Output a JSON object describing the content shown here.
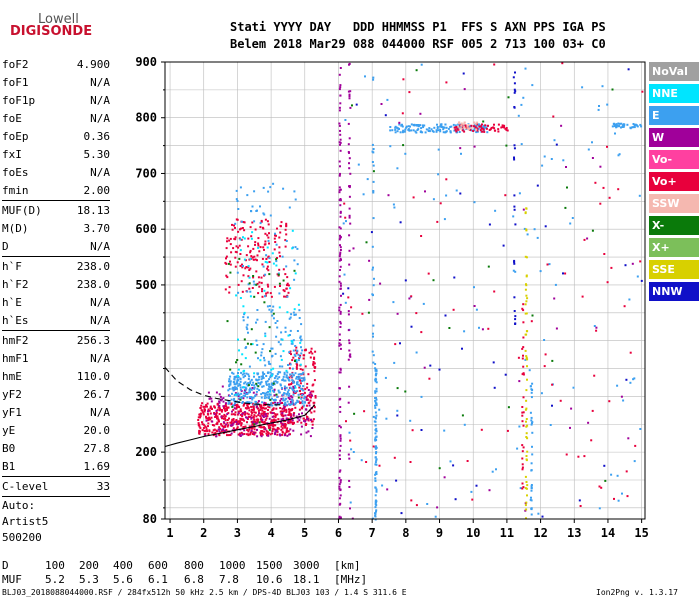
{
  "logo": {
    "line1": "Lowell",
    "line2": "DIGISONDE"
  },
  "header": {
    "row1": "Stati YYYY DAY   DDD HHMMSS P1  FFS S AXN PPS IGA PS",
    "row2": "Belem 2018 Mar29 088 044000 RSF 005 2 713 100 03+ C0"
  },
  "params": {
    "group1": [
      {
        "k": "foF2",
        "v": "4.900"
      },
      {
        "k": "foF1",
        "v": "N/A"
      },
      {
        "k": "foF1p",
        "v": "N/A"
      },
      {
        "k": "foE",
        "v": "N/A"
      },
      {
        "k": "foEp",
        "v": "0.36"
      },
      {
        "k": "fxI",
        "v": "5.30"
      },
      {
        "k": "foEs",
        "v": "N/A"
      },
      {
        "k": "fmin",
        "v": "2.00"
      }
    ],
    "group2": [
      {
        "k": "MUF(D)",
        "v": "18.13"
      },
      {
        "k": "M(D)",
        "v": "3.70"
      },
      {
        "k": "D",
        "v": "N/A"
      }
    ],
    "group3": [
      {
        "k": "h`F",
        "v": "238.0"
      },
      {
        "k": "h`F2",
        "v": "238.0"
      },
      {
        "k": "h`E",
        "v": "N/A"
      },
      {
        "k": "h`Es",
        "v": "N/A"
      }
    ],
    "group4": [
      {
        "k": "hmF2",
        "v": "256.3"
      },
      {
        "k": "hmF1",
        "v": "N/A"
      },
      {
        "k": "hmE",
        "v": "110.0"
      },
      {
        "k": "yF2",
        "v": "26.7"
      },
      {
        "k": "yF1",
        "v": "N/A"
      },
      {
        "k": "yE",
        "v": "20.0"
      },
      {
        "k": "B0",
        "v": "27.8"
      },
      {
        "k": "B1",
        "v": "1.69"
      }
    ],
    "group5": [
      {
        "k": "C-level",
        "v": "33"
      }
    ],
    "auto": [
      "Auto:",
      "Artist5",
      "500200"
    ]
  },
  "legend": [
    {
      "label": "NoVal",
      "color": "#a0a0a0"
    },
    {
      "label": "NNE",
      "color": "#00e5ff"
    },
    {
      "label": "E",
      "color": "#3ca0f0"
    },
    {
      "label": "W",
      "color": "#a0009a"
    },
    {
      "label": "Vo-",
      "color": "#ff40a0"
    },
    {
      "label": "Vo+",
      "color": "#e8003c"
    },
    {
      "label": "SSW",
      "color": "#f5b8b0"
    },
    {
      "label": "X-",
      "color": "#0a7a0a"
    },
    {
      "label": "X+",
      "color": "#7cbf5a"
    },
    {
      "label": "SSE",
      "color": "#d8d000"
    },
    {
      "label": "NNW",
      "color": "#1010c8"
    }
  ],
  "chart_data": {
    "type": "scatter",
    "title": "",
    "xlabel": "",
    "ylabel": "",
    "xlim": [
      0.85,
      15.1
    ],
    "ylim": [
      80,
      900
    ],
    "xticks": [
      1,
      2,
      3,
      4,
      5,
      6,
      7,
      8,
      9,
      10,
      11,
      12,
      13,
      14,
      15
    ],
    "yticks": [
      80,
      200,
      300,
      400,
      500,
      600,
      700,
      800,
      900
    ],
    "yticks_minor": [
      100,
      150,
      250,
      350,
      450,
      550,
      650,
      750,
      850
    ],
    "grid": true,
    "clusters": [
      {
        "color": "#e8003c",
        "x": [
          1.8,
          4.6
        ],
        "y": [
          232,
          290
        ],
        "n": 520
      },
      {
        "color": "#e8003c",
        "x": [
          4.5,
          5.3
        ],
        "y": [
          250,
          390
        ],
        "n": 160
      },
      {
        "color": "#a0009a",
        "x": [
          2.0,
          5.2
        ],
        "y": [
          230,
          320
        ],
        "n": 180
      },
      {
        "color": "#3ca0f0",
        "x": [
          2.7,
          5.0
        ],
        "y": [
          285,
          345
        ],
        "n": 340
      },
      {
        "color": "#3ca0f0",
        "x": [
          3.1,
          4.9
        ],
        "y": [
          345,
          460
        ],
        "n": 90
      },
      {
        "color": "#e8003c",
        "x": [
          2.6,
          4.5
        ],
        "y": [
          480,
          620
        ],
        "n": 180
      },
      {
        "color": "#3ca0f0",
        "x": [
          2.9,
          4.8
        ],
        "y": [
          460,
          690
        ],
        "n": 60
      },
      {
        "color": "#00e5ff",
        "x": [
          2.8,
          4.9
        ],
        "y": [
          300,
          600
        ],
        "n": 60
      },
      {
        "color": "#0a7a0a",
        "x": [
          2.6,
          4.8
        ],
        "y": [
          240,
          560
        ],
        "n": 40
      },
      {
        "color": "#3ca0f0",
        "x": [
          7.5,
          10.4
        ],
        "y": [
          775,
          790
        ],
        "n": 160
      },
      {
        "color": "#e8003c",
        "x": [
          9.4,
          11.0
        ],
        "y": [
          776,
          790
        ],
        "n": 60
      },
      {
        "color": "#f5b8b0",
        "x": [
          9.5,
          10.1
        ],
        "y": [
          780,
          794
        ],
        "n": 25
      },
      {
        "color": "#3ca0f0",
        "x": [
          14.1,
          15.0
        ],
        "y": [
          783,
          792
        ],
        "n": 40
      },
      {
        "color": "#3ca0f0",
        "x": [
          6.1,
          15.0
        ],
        "y": [
          80,
          900
        ],
        "n": 120
      },
      {
        "color": "#e8003c",
        "x": [
          6.1,
          15.0
        ],
        "y": [
          80,
          900
        ],
        "n": 80
      },
      {
        "color": "#1010c8",
        "x": [
          6.1,
          15.0
        ],
        "y": [
          80,
          900
        ],
        "n": 40
      },
      {
        "color": "#a0009a",
        "x": [
          6.1,
          15.0
        ],
        "y": [
          80,
          900
        ],
        "n": 40
      },
      {
        "color": "#0a7a0a",
        "x": [
          6.1,
          15.0
        ],
        "y": [
          80,
          900
        ],
        "n": 25
      }
    ],
    "columns": [
      {
        "color": "#a0009a",
        "x": 6.02,
        "y": [
          80,
          900
        ],
        "n": 110
      },
      {
        "color": "#a0009a",
        "x": 6.3,
        "y": [
          80,
          900
        ],
        "n": 45
      },
      {
        "color": "#3ca0f0",
        "x": 7.08,
        "y": [
          80,
          360
        ],
        "n": 90
      },
      {
        "color": "#3ca0f0",
        "x": 7.0,
        "y": [
          360,
          900
        ],
        "n": 25
      },
      {
        "color": "#d8d000",
        "x": 11.55,
        "y": [
          80,
          640
        ],
        "n": 55
      },
      {
        "color": "#e8003c",
        "x": 11.45,
        "y": [
          80,
          470
        ],
        "n": 30
      },
      {
        "color": "#1010c8",
        "x": 11.2,
        "y": [
          420,
          900
        ],
        "n": 25
      },
      {
        "color": "#3ca0f0",
        "x": 11.7,
        "y": [
          80,
          340
        ],
        "n": 30
      }
    ],
    "dashed_curve": [
      [
        0.85,
        352
      ],
      [
        1.2,
        328
      ],
      [
        1.6,
        312
      ],
      [
        2.0,
        302
      ],
      [
        2.4,
        296
      ],
      [
        2.8,
        292
      ],
      [
        3.2,
        288
      ],
      [
        3.6,
        286
      ],
      [
        4.0,
        285
      ],
      [
        4.4,
        285
      ]
    ],
    "solid_curve": [
      [
        0.85,
        210
      ],
      [
        1.2,
        216
      ],
      [
        1.6,
        222
      ],
      [
        2.0,
        228
      ],
      [
        2.5,
        234
      ],
      [
        3.0,
        240
      ],
      [
        3.5,
        246
      ],
      [
        4.0,
        252
      ],
      [
        4.5,
        258
      ],
      [
        5.0,
        266
      ],
      [
        5.3,
        285
      ]
    ]
  },
  "bottom": {
    "d_label": "D",
    "d_values": [
      "100",
      "200",
      "400",
      "600",
      "800",
      "1000",
      "1500",
      "3000",
      "[km]"
    ],
    "muf_label": "MUF",
    "muf_values": [
      "5.2",
      "5.3",
      "5.6",
      "6.1",
      "6.8",
      "7.8",
      "10.6",
      "18.1",
      "[MHz]"
    ],
    "footer_left": "BLJ03_2018088044000.RSF / 284fx512h 50 kHz 2.5 km / DPS-4D BLJ03 103 / 1.4 S 311.6 E",
    "footer_right": "Ion2Png v. 1.3.17"
  }
}
